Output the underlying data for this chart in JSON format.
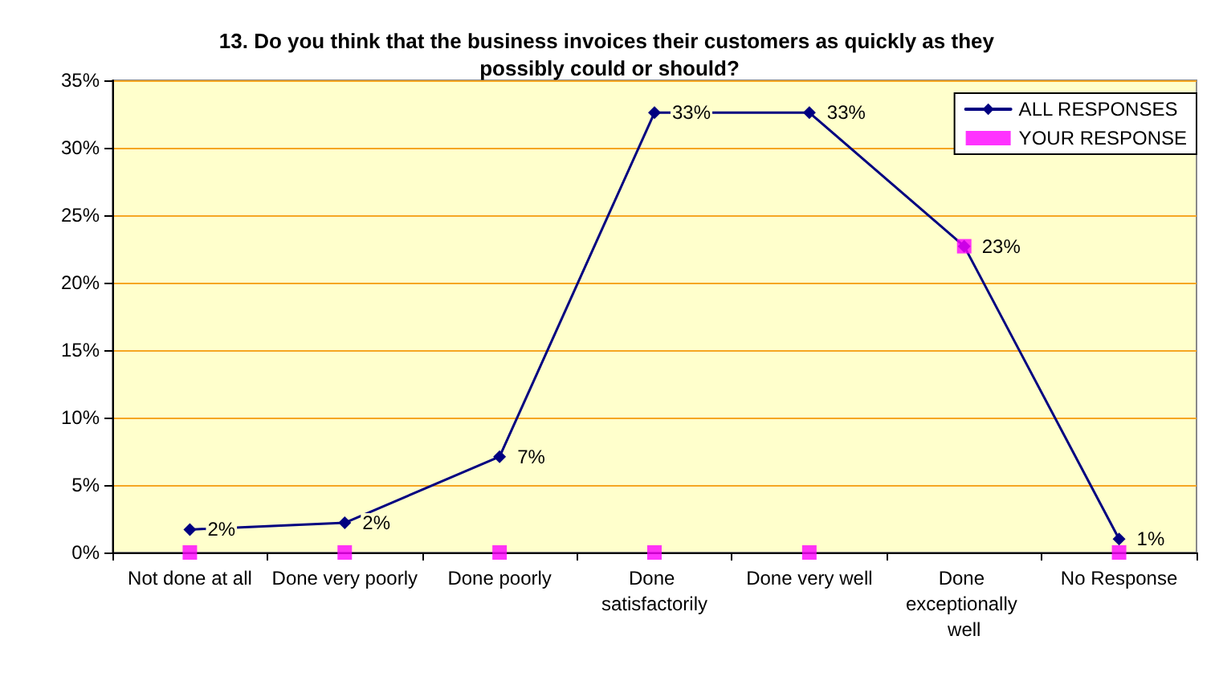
{
  "chart_data": {
    "type": "line",
    "title": "13. Do you think that the business invoices their customers as quickly as they possibly could or should?",
    "categories": [
      "Not done at all",
      "Done very poorly",
      "Done poorly",
      "Done satisfactorily",
      "Done very well",
      "Done exceptionally well",
      "No Response"
    ],
    "series": [
      {
        "name": "ALL RESPONSES",
        "color": "#000080",
        "marker": "diamond",
        "line_style": "solid",
        "values": [
          1.7,
          2.2,
          7.1,
          32.6,
          32.6,
          22.7,
          1.0
        ],
        "value_labels": [
          "2%",
          "2%",
          "7%",
          "33%",
          "33%",
          "23%",
          "1%"
        ]
      },
      {
        "name": "YOUR RESPONSE",
        "type": "scatter",
        "color": "#ff00ff",
        "marker": "square",
        "values": [
          0,
          0,
          0,
          0,
          0,
          22.7,
          0
        ]
      }
    ],
    "ylim": [
      0,
      35
    ],
    "yticks": [
      {
        "value": 0,
        "label": "0%"
      },
      {
        "value": 5,
        "label": "5%"
      },
      {
        "value": 10,
        "label": "10%"
      },
      {
        "value": 15,
        "label": "15%"
      },
      {
        "value": 20,
        "label": "20%"
      },
      {
        "value": 25,
        "label": "25%"
      },
      {
        "value": 30,
        "label": "30%"
      },
      {
        "value": 35,
        "label": "35%"
      }
    ],
    "grid": "y",
    "legend": "top right"
  }
}
